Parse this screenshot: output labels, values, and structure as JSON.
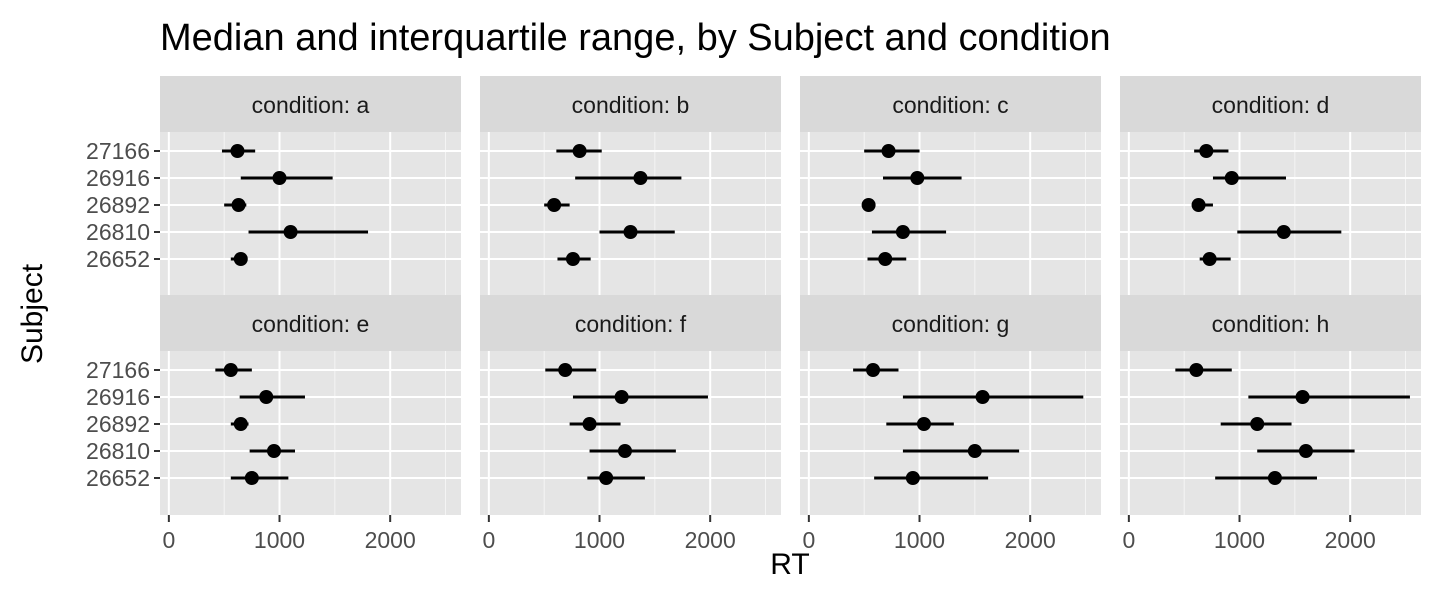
{
  "chart_data": {
    "type": "dot-range",
    "title": "Median and interquartile range, by Subject and condition",
    "xlabel": "RT",
    "ylabel": "Subject",
    "xlim": [
      -80,
      2640
    ],
    "x_ticks": [
      0,
      1000,
      2000
    ],
    "x_tick_labels": [
      "0",
      "1000",
      "2000"
    ],
    "subjects": [
      "27166",
      "26916",
      "26892",
      "26810",
      "26652"
    ],
    "facet_prefix": "condition: ",
    "grid": true,
    "layout": "2 rows x 4 columns",
    "colors": {
      "panel": "#e5e5e5",
      "strip": "#d9d9d9",
      "gridline": "#ffffff",
      "mark": "#000000"
    },
    "panels": [
      {
        "label": "condition: a",
        "points": [
          {
            "subject": "27166",
            "median": 620,
            "q1": 480,
            "q3": 780
          },
          {
            "subject": "26916",
            "median": 1000,
            "q1": 650,
            "q3": 1480
          },
          {
            "subject": "26892",
            "median": 630,
            "q1": 500,
            "q3": 700
          },
          {
            "subject": "26810",
            "median": 1100,
            "q1": 720,
            "q3": 1800
          },
          {
            "subject": "26652",
            "median": 650,
            "q1": 560,
            "q3": 700
          }
        ]
      },
      {
        "label": "condition: b",
        "points": [
          {
            "subject": "27166",
            "median": 820,
            "q1": 610,
            "q3": 1020
          },
          {
            "subject": "26916",
            "median": 1370,
            "q1": 780,
            "q3": 1740
          },
          {
            "subject": "26892",
            "median": 590,
            "q1": 500,
            "q3": 730
          },
          {
            "subject": "26810",
            "median": 1280,
            "q1": 1000,
            "q3": 1680
          },
          {
            "subject": "26652",
            "median": 760,
            "q1": 620,
            "q3": 920
          }
        ]
      },
      {
        "label": "condition: c",
        "points": [
          {
            "subject": "27166",
            "median": 720,
            "q1": 500,
            "q3": 1000
          },
          {
            "subject": "26916",
            "median": 980,
            "q1": 670,
            "q3": 1380
          },
          {
            "subject": "26892",
            "median": 540,
            "q1": 520,
            "q3": 580
          },
          {
            "subject": "26810",
            "median": 850,
            "q1": 570,
            "q3": 1240
          },
          {
            "subject": "26652",
            "median": 690,
            "q1": 530,
            "q3": 880
          }
        ]
      },
      {
        "label": "condition: d",
        "points": [
          {
            "subject": "27166",
            "median": 700,
            "q1": 590,
            "q3": 900
          },
          {
            "subject": "26916",
            "median": 930,
            "q1": 760,
            "q3": 1420
          },
          {
            "subject": "26892",
            "median": 630,
            "q1": 570,
            "q3": 760
          },
          {
            "subject": "26810",
            "median": 1400,
            "q1": 980,
            "q3": 1920
          },
          {
            "subject": "26652",
            "median": 730,
            "q1": 640,
            "q3": 920
          }
        ]
      },
      {
        "label": "condition: e",
        "points": [
          {
            "subject": "27166",
            "median": 560,
            "q1": 420,
            "q3": 750
          },
          {
            "subject": "26916",
            "median": 880,
            "q1": 640,
            "q3": 1230
          },
          {
            "subject": "26892",
            "median": 650,
            "q1": 560,
            "q3": 720
          },
          {
            "subject": "26810",
            "median": 950,
            "q1": 730,
            "q3": 1140
          },
          {
            "subject": "26652",
            "median": 750,
            "q1": 560,
            "q3": 1080
          }
        ]
      },
      {
        "label": "condition: f",
        "points": [
          {
            "subject": "27166",
            "median": 690,
            "q1": 510,
            "q3": 970
          },
          {
            "subject": "26916",
            "median": 1200,
            "q1": 760,
            "q3": 1980
          },
          {
            "subject": "26892",
            "median": 910,
            "q1": 730,
            "q3": 1190
          },
          {
            "subject": "26810",
            "median": 1230,
            "q1": 910,
            "q3": 1690
          },
          {
            "subject": "26652",
            "median": 1060,
            "q1": 890,
            "q3": 1410
          }
        ]
      },
      {
        "label": "condition: g",
        "points": [
          {
            "subject": "27166",
            "median": 580,
            "q1": 400,
            "q3": 810
          },
          {
            "subject": "26916",
            "median": 1570,
            "q1": 850,
            "q3": 2480
          },
          {
            "subject": "26892",
            "median": 1040,
            "q1": 700,
            "q3": 1310
          },
          {
            "subject": "26810",
            "median": 1500,
            "q1": 850,
            "q3": 1900
          },
          {
            "subject": "26652",
            "median": 940,
            "q1": 590,
            "q3": 1620
          }
        ]
      },
      {
        "label": "condition: h",
        "points": [
          {
            "subject": "27166",
            "median": 610,
            "q1": 420,
            "q3": 930
          },
          {
            "subject": "26916",
            "median": 1570,
            "q1": 1080,
            "q3": 2540
          },
          {
            "subject": "26892",
            "median": 1160,
            "q1": 830,
            "q3": 1470
          },
          {
            "subject": "26810",
            "median": 1600,
            "q1": 1160,
            "q3": 2040
          },
          {
            "subject": "26652",
            "median": 1320,
            "q1": 780,
            "q3": 1700
          }
        ]
      }
    ]
  }
}
